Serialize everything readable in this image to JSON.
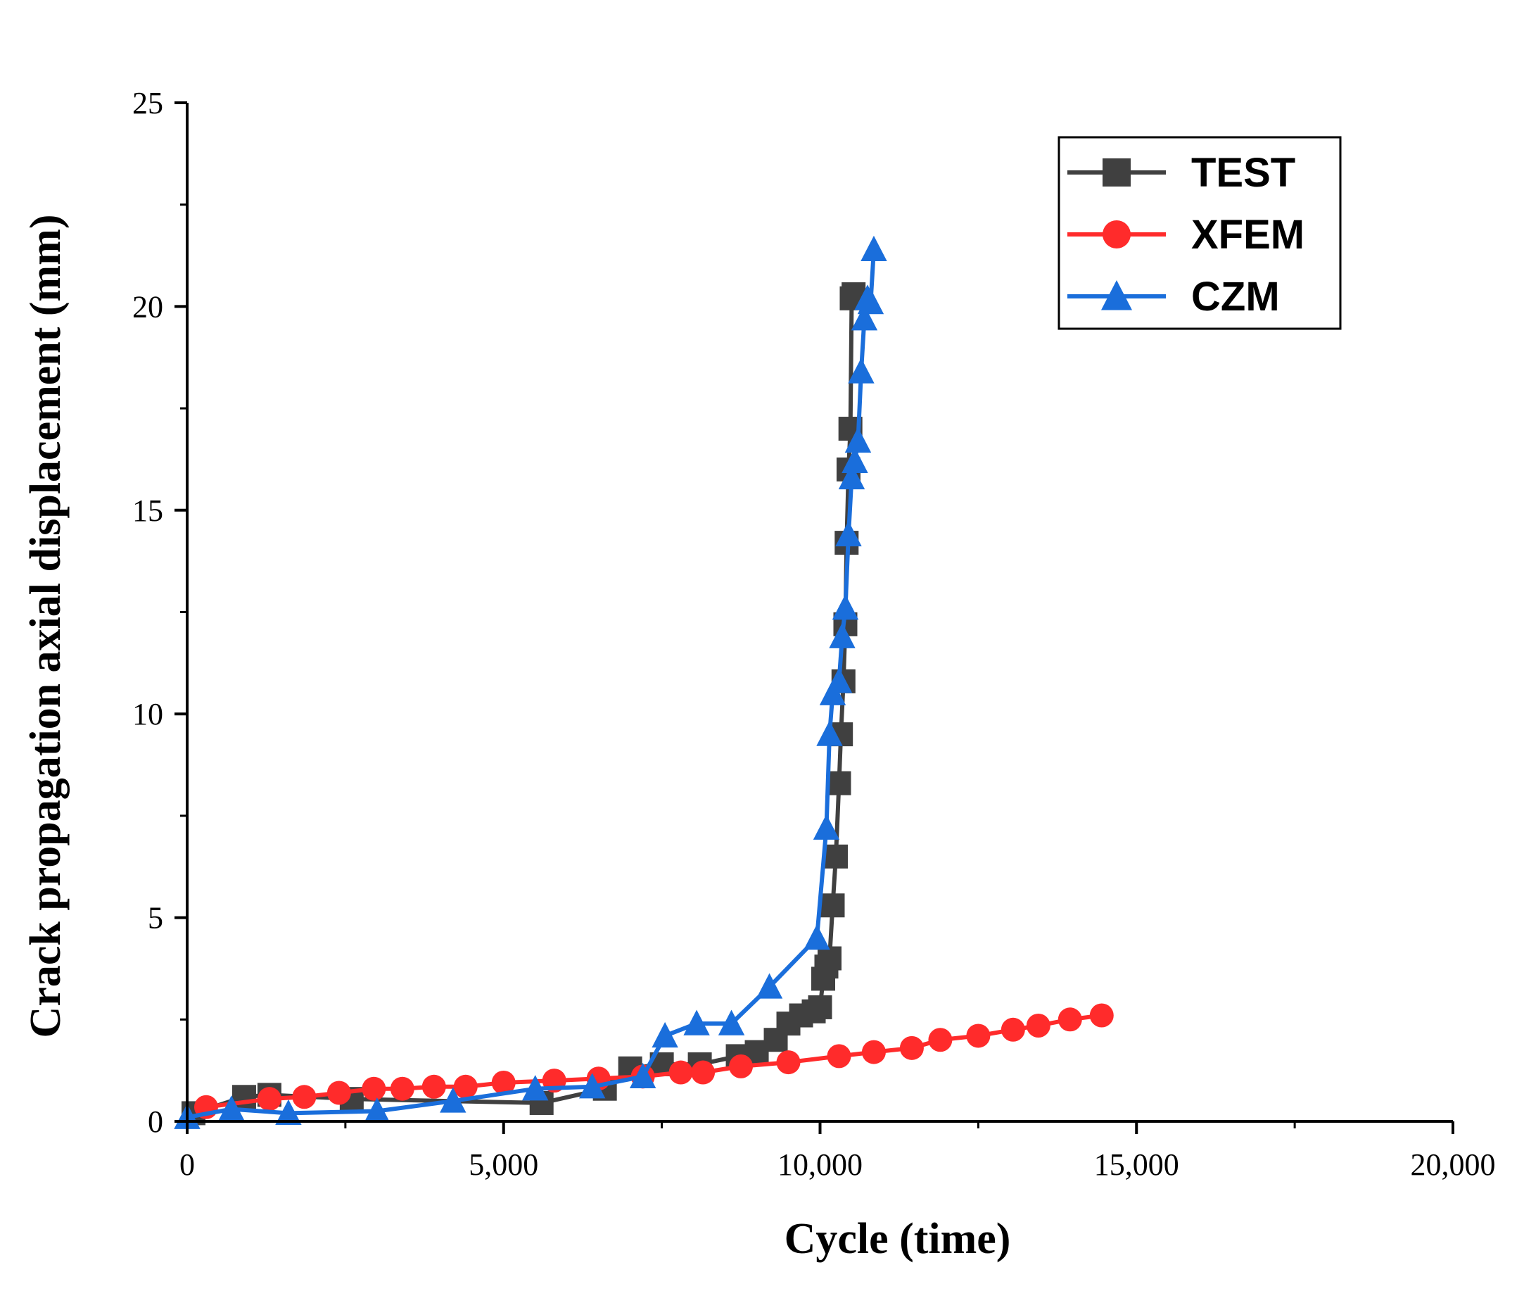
{
  "chart_data": {
    "type": "line",
    "title": "",
    "xlabel": "Cycle (time)",
    "ylabel": "Crack propagation axial displacement (mm)",
    "xlim": [
      0,
      20000
    ],
    "ylim": [
      0,
      25
    ],
    "xticks": [
      0,
      5000,
      10000,
      15000,
      20000
    ],
    "xtick_labels": [
      "0",
      "5,000",
      "10,000",
      "15,000",
      "20,000"
    ],
    "yticks": [
      0,
      5,
      10,
      15,
      20,
      25
    ],
    "ytick_labels": [
      "0",
      "5",
      "10",
      "15",
      "20",
      "25"
    ],
    "legend_position": "top-right",
    "series": [
      {
        "name": "TEST",
        "color": "#404040",
        "marker": "square",
        "x": [
          100,
          900,
          1300,
          2600,
          5600,
          6600,
          7000,
          7500,
          8100,
          8700,
          9000,
          9300,
          9500,
          9700,
          9900,
          10000,
          10050,
          10100,
          10150,
          10200,
          10250,
          10300,
          10330,
          10370,
          10400,
          10420,
          10450,
          10480,
          10500,
          10530
        ],
        "y": [
          0.2,
          0.6,
          0.65,
          0.55,
          0.45,
          0.8,
          1.3,
          1.4,
          1.4,
          1.6,
          1.7,
          2.0,
          2.4,
          2.6,
          2.7,
          2.8,
          3.5,
          3.8,
          4.0,
          5.3,
          6.5,
          8.3,
          9.5,
          10.8,
          12.2,
          14.2,
          16.0,
          17.0,
          20.2,
          20.3
        ]
      },
      {
        "name": "XFEM",
        "color": "#ff2b2b",
        "marker": "circle",
        "x": [
          300,
          1300,
          1850,
          2400,
          2950,
          3400,
          3900,
          4400,
          5000,
          5800,
          6500,
          7200,
          7800,
          8150,
          8750,
          9500,
          10300,
          10850,
          11450,
          11900,
          12500,
          13050,
          13450,
          13950,
          14450
        ],
        "y": [
          0.35,
          0.55,
          0.6,
          0.7,
          0.8,
          0.8,
          0.85,
          0.85,
          0.95,
          1.0,
          1.05,
          1.1,
          1.2,
          1.2,
          1.35,
          1.45,
          1.6,
          1.7,
          1.8,
          2.0,
          2.1,
          2.25,
          2.35,
          2.5,
          2.6
        ]
      },
      {
        "name": "CZM",
        "color": "#1a6edb",
        "marker": "triangle",
        "x": [
          0,
          700,
          1600,
          3000,
          4200,
          5500,
          6400,
          7200,
          7550,
          8050,
          8600,
          9200,
          9950,
          10100,
          10150,
          10200,
          10300,
          10350,
          10400,
          10450,
          10500,
          10550,
          10600,
          10650,
          10700,
          10750,
          10800,
          10850
        ],
        "y": [
          0.1,
          0.3,
          0.2,
          0.25,
          0.5,
          0.8,
          0.85,
          1.1,
          2.1,
          2.4,
          2.4,
          3.3,
          4.5,
          7.2,
          9.5,
          10.5,
          10.8,
          11.9,
          12.6,
          14.4,
          15.8,
          16.2,
          16.7,
          18.4,
          19.7,
          20.2,
          20.1,
          21.4
        ]
      }
    ]
  }
}
